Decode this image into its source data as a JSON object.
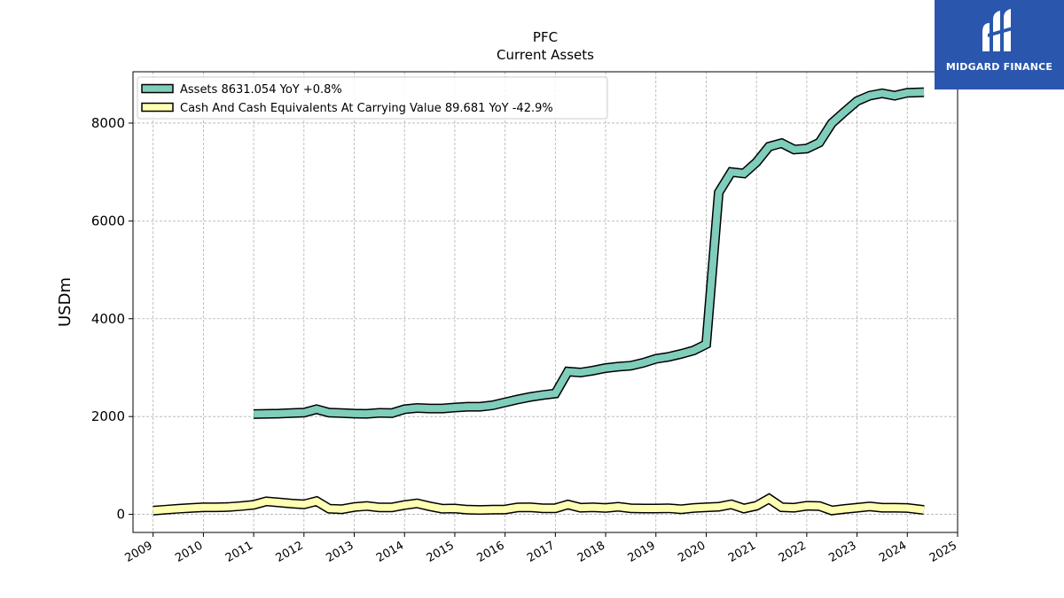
{
  "header": {
    "ticker": "PFC",
    "subtitle": "Current  Assets"
  },
  "logo": {
    "text": "MIDGARD FINANCE",
    "color": "#2a57ad"
  },
  "chart_data": {
    "type": "line",
    "title": "PFC",
    "subtitle": "Current  Assets",
    "ylabel": "USDm",
    "xlabel": "",
    "xlim": [
      2008.6,
      2025.0
    ],
    "ylim": [
      -370,
      9050
    ],
    "x_ticks": [
      "2009",
      "2010",
      "2011",
      "2012",
      "2013",
      "2014",
      "2015",
      "2016",
      "2017",
      "2018",
      "2019",
      "2020",
      "2021",
      "2022",
      "2023",
      "2024",
      "2025"
    ],
    "y_ticks": [
      "0",
      "2000",
      "4000",
      "6000",
      "8000"
    ],
    "grid": true,
    "legend_position": "top-left",
    "series": [
      {
        "name": "Assets",
        "legend": "Assets  8631.054 YoY +0.8%",
        "color": "#7fcdbb",
        "points": [
          [
            2011.0,
            2050
          ],
          [
            2011.25,
            2055
          ],
          [
            2011.5,
            2060
          ],
          [
            2011.75,
            2070
          ],
          [
            2012.0,
            2080
          ],
          [
            2012.25,
            2150
          ],
          [
            2012.5,
            2080
          ],
          [
            2012.75,
            2070
          ],
          [
            2013.0,
            2060
          ],
          [
            2013.25,
            2055
          ],
          [
            2013.5,
            2075
          ],
          [
            2013.75,
            2070
          ],
          [
            2014.0,
            2150
          ],
          [
            2014.25,
            2175
          ],
          [
            2014.5,
            2165
          ],
          [
            2014.75,
            2165
          ],
          [
            2015.0,
            2185
          ],
          [
            2015.25,
            2200
          ],
          [
            2015.5,
            2200
          ],
          [
            2015.75,
            2230
          ],
          [
            2016.0,
            2290
          ],
          [
            2016.25,
            2350
          ],
          [
            2016.5,
            2400
          ],
          [
            2016.75,
            2440
          ],
          [
            2017.0,
            2470
          ],
          [
            2017.25,
            2920
          ],
          [
            2017.5,
            2900
          ],
          [
            2017.75,
            2940
          ],
          [
            2018.0,
            2990
          ],
          [
            2018.25,
            3020
          ],
          [
            2018.5,
            3040
          ],
          [
            2018.75,
            3100
          ],
          [
            2019.0,
            3180
          ],
          [
            2019.25,
            3220
          ],
          [
            2019.5,
            3280
          ],
          [
            2019.75,
            3350
          ],
          [
            2020.0,
            3480
          ],
          [
            2020.25,
            6580
          ],
          [
            2020.5,
            7000
          ],
          [
            2020.75,
            6970
          ],
          [
            2021.0,
            7200
          ],
          [
            2021.25,
            7520
          ],
          [
            2021.5,
            7590
          ],
          [
            2021.75,
            7460
          ],
          [
            2022.0,
            7480
          ],
          [
            2022.25,
            7600
          ],
          [
            2022.5,
            8000
          ],
          [
            2022.75,
            8230
          ],
          [
            2023.0,
            8450
          ],
          [
            2023.25,
            8560
          ],
          [
            2023.5,
            8610
          ],
          [
            2023.75,
            8560
          ],
          [
            2024.0,
            8620
          ],
          [
            2024.33,
            8631.054
          ]
        ]
      },
      {
        "name": "Cash And Cash Equivalents At Carrying Value",
        "legend": "Cash And Cash Equivalents At Carrying Value  89.681 YoY -42.9%",
        "color": "#ffffb3",
        "points": [
          [
            2009.0,
            75
          ],
          [
            2009.25,
            95
          ],
          [
            2009.5,
            115
          ],
          [
            2009.75,
            130
          ],
          [
            2010.0,
            145
          ],
          [
            2010.25,
            145
          ],
          [
            2010.5,
            150
          ],
          [
            2010.75,
            170
          ],
          [
            2011.0,
            195
          ],
          [
            2011.25,
            265
          ],
          [
            2011.5,
            245
          ],
          [
            2011.75,
            220
          ],
          [
            2012.0,
            205
          ],
          [
            2012.25,
            270
          ],
          [
            2012.5,
            115
          ],
          [
            2012.75,
            105
          ],
          [
            2013.0,
            150
          ],
          [
            2013.25,
            170
          ],
          [
            2013.5,
            140
          ],
          [
            2013.75,
            140
          ],
          [
            2014.0,
            190
          ],
          [
            2014.25,
            225
          ],
          [
            2014.5,
            165
          ],
          [
            2014.75,
            115
          ],
          [
            2015.0,
            120
          ],
          [
            2015.25,
            95
          ],
          [
            2015.5,
            90
          ],
          [
            2015.75,
            95
          ],
          [
            2016.0,
            100
          ],
          [
            2016.25,
            140
          ],
          [
            2016.5,
            145
          ],
          [
            2016.75,
            125
          ],
          [
            2017.0,
            125
          ],
          [
            2017.25,
            200
          ],
          [
            2017.5,
            135
          ],
          [
            2017.75,
            145
          ],
          [
            2018.0,
            130
          ],
          [
            2018.25,
            155
          ],
          [
            2018.5,
            125
          ],
          [
            2018.75,
            120
          ],
          [
            2019.0,
            120
          ],
          [
            2019.25,
            125
          ],
          [
            2019.5,
            105
          ],
          [
            2019.75,
            130
          ],
          [
            2020.0,
            145
          ],
          [
            2020.25,
            155
          ],
          [
            2020.5,
            205
          ],
          [
            2020.75,
            120
          ],
          [
            2021.0,
            175
          ],
          [
            2021.25,
            320
          ],
          [
            2021.5,
            145
          ],
          [
            2021.75,
            135
          ],
          [
            2022.0,
            175
          ],
          [
            2022.25,
            170
          ],
          [
            2022.5,
            80
          ],
          [
            2022.75,
            110
          ],
          [
            2023.0,
            135
          ],
          [
            2023.25,
            160
          ],
          [
            2023.5,
            135
          ],
          [
            2023.75,
            135
          ],
          [
            2024.0,
            130
          ],
          [
            2024.33,
            89.681
          ]
        ]
      }
    ]
  }
}
